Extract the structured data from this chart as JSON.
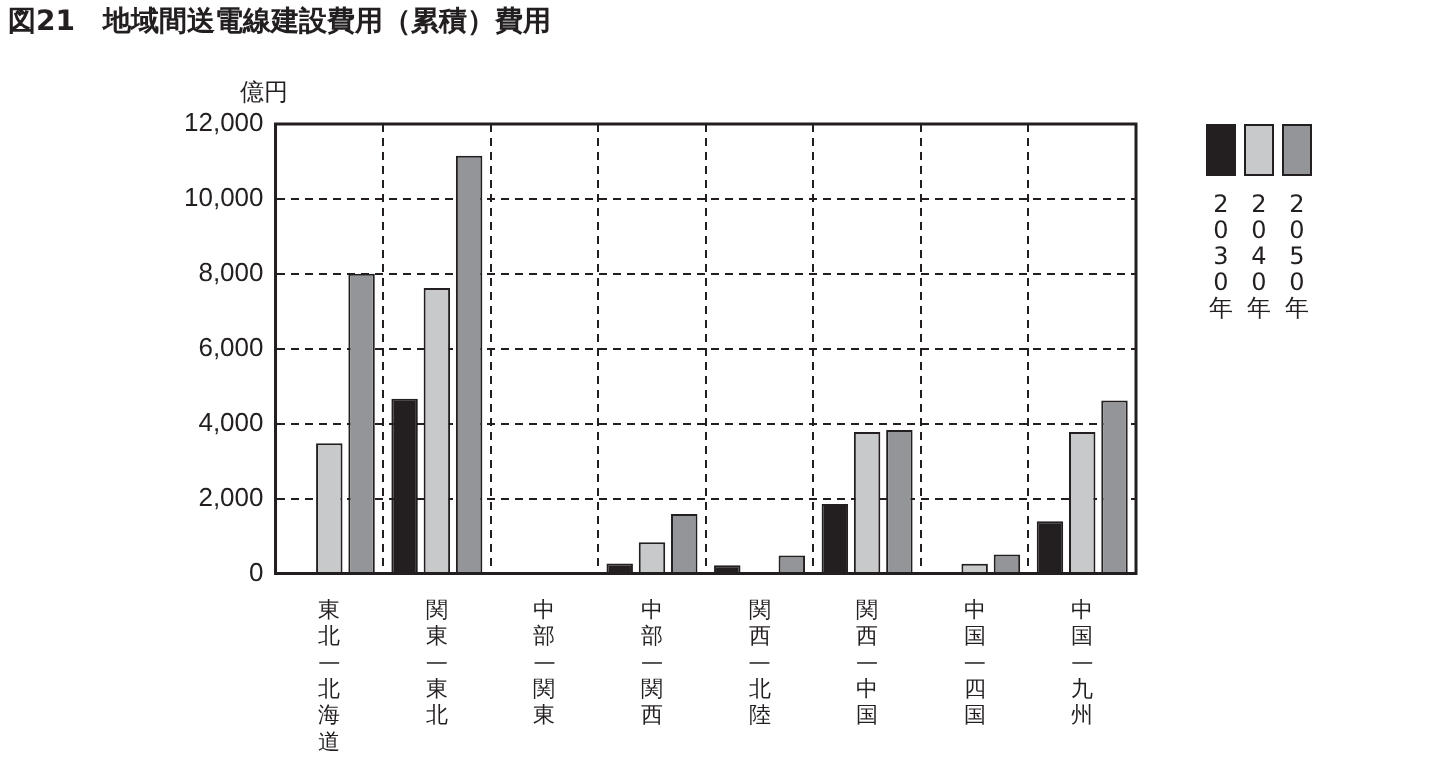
{
  "chart_data": {
    "type": "bar",
    "title": "図21　地域間送電線建設費用（累積）費用",
    "ylabel": "億円",
    "categories": [
      "東北—北海道",
      "関東—東北",
      "中部—関東",
      "中部—関西",
      "関西—北陸",
      "関西—中国",
      "中国—四国",
      "中国—九州"
    ],
    "series": [
      {
        "name": "2030年",
        "color": "#231f20",
        "values": [
          0,
          4670,
          0,
          270,
          220,
          1860,
          0,
          1400
        ]
      },
      {
        "name": "2040年",
        "color": "#c8c9ca",
        "values": [
          3480,
          7620,
          0,
          840,
          0,
          3780,
          260,
          3780
        ]
      },
      {
        "name": "2050年",
        "color": "#939598",
        "values": [
          8000,
          11150,
          0,
          1590,
          480,
          3830,
          510,
          4620
        ]
      }
    ],
    "ylim": [
      0,
      12000
    ],
    "yticks": [
      0,
      {
        "value": 2000,
        "label": "2,000"
      },
      {
        "value": 4000,
        "label": "4,000"
      },
      {
        "value": 6000,
        "label": "6,000"
      },
      {
        "value": 8000,
        "label": "8,000"
      },
      {
        "value": 10000,
        "label": "10,000"
      },
      {
        "value": 12000,
        "label": "12,000"
      }
    ],
    "grid": true,
    "legend": "top right"
  }
}
